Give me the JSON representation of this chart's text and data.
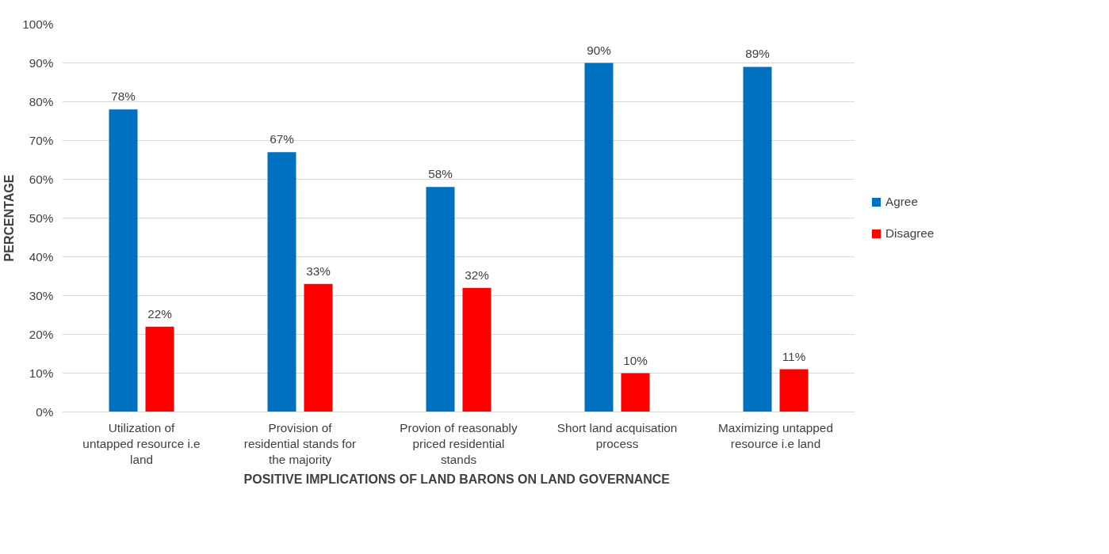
{
  "chart_data": {
    "type": "bar",
    "xlabel": "POSITIVE  IMPLICATIONS OF LAND BARONS ON LAND GOVERNANCE",
    "ylabel": "PERCENTAGE",
    "categories": [
      "Utilization of untapped resource i.e land",
      "Provision of residential stands for the majority",
      "Provion of reasonably priced residential stands",
      "Short land acquisation process",
      "Maximizing untapped resource i.e land"
    ],
    "series": [
      {
        "name": "Agree",
        "color": "#0070c0",
        "values": [
          78,
          67,
          58,
          90,
          89
        ],
        "value_labels": [
          "78%",
          "67%",
          "58%",
          "90%",
          "89%"
        ]
      },
      {
        "name": "Disagree",
        "color": "#ff0000",
        "values": [
          22,
          33,
          32,
          10,
          11
        ],
        "value_labels": [
          "22%",
          "33%",
          "32%",
          "10%",
          "11%"
        ]
      }
    ],
    "ylim": [
      0,
      100
    ],
    "yticks": [
      {
        "value": 0,
        "label": "0%"
      },
      {
        "value": 10,
        "label": "10%"
      },
      {
        "value": 20,
        "label": "20%"
      },
      {
        "value": 30,
        "label": "30%"
      },
      {
        "value": 40,
        "label": "40%"
      },
      {
        "value": 50,
        "label": "50%"
      },
      {
        "value": 60,
        "label": "60%"
      },
      {
        "value": 70,
        "label": "70%"
      },
      {
        "value": 80,
        "label": "80%"
      },
      {
        "value": 90,
        "label": "90%"
      },
      {
        "value": 100,
        "label": "100%"
      }
    ],
    "grid": "y",
    "legend": "right"
  }
}
